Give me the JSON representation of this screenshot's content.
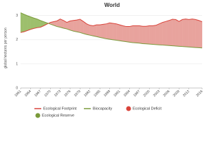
{
  "chart_data": {
    "type": "area-compare",
    "title": "World",
    "y_label": "global hectares per person",
    "x": [
      1961,
      1962,
      1963,
      1964,
      1965,
      1966,
      1967,
      1968,
      1969,
      1970,
      1971,
      1972,
      1973,
      1974,
      1975,
      1976,
      1977,
      1978,
      1979,
      1980,
      1981,
      1982,
      1983,
      1984,
      1985,
      1986,
      1987,
      1988,
      1989,
      1990,
      1991,
      1992,
      1993,
      1994,
      1995,
      1996,
      1997,
      1998,
      1999,
      2000,
      2001,
      2002,
      2003,
      2004,
      2005,
      2006,
      2007,
      2008,
      2009,
      2010,
      2011,
      2012,
      2013,
      2014,
      2015,
      2016
    ],
    "series": [
      {
        "name": "Ecological Footprint",
        "color": "#d9433a",
        "values": [
          2.3,
          2.33,
          2.38,
          2.43,
          2.47,
          2.5,
          2.52,
          2.58,
          2.65,
          2.72,
          2.75,
          2.78,
          2.86,
          2.8,
          2.72,
          2.78,
          2.8,
          2.82,
          2.85,
          2.76,
          2.66,
          2.6,
          2.58,
          2.62,
          2.62,
          2.64,
          2.66,
          2.7,
          2.68,
          2.66,
          2.62,
          2.58,
          2.55,
          2.55,
          2.58,
          2.58,
          2.58,
          2.56,
          2.56,
          2.58,
          2.58,
          2.6,
          2.66,
          2.72,
          2.76,
          2.8,
          2.85,
          2.84,
          2.76,
          2.84,
          2.86,
          2.84,
          2.86,
          2.84,
          2.8,
          2.75
        ]
      },
      {
        "name": "Biocapacity",
        "color": "#7a9a3a",
        "values": [
          3.12,
          3.06,
          3.0,
          2.95,
          2.9,
          2.86,
          2.8,
          2.75,
          2.7,
          2.65,
          2.6,
          2.55,
          2.52,
          2.48,
          2.45,
          2.4,
          2.36,
          2.33,
          2.3,
          2.26,
          2.22,
          2.19,
          2.16,
          2.13,
          2.1,
          2.07,
          2.04,
          2.02,
          2.0,
          1.98,
          1.96,
          1.94,
          1.92,
          1.9,
          1.88,
          1.87,
          1.86,
          1.84,
          1.83,
          1.82,
          1.81,
          1.8,
          1.79,
          1.78,
          1.77,
          1.76,
          1.75,
          1.74,
          1.73,
          1.72,
          1.71,
          1.7,
          1.69,
          1.68,
          1.67,
          1.66
        ]
      }
    ],
    "areas": [
      {
        "name": "Ecological Deficit",
        "color": "#e8a39d"
      },
      {
        "name": "Ecological Reserve",
        "color": "#9dbf6c"
      }
    ],
    "xlim": [
      1961,
      2016
    ],
    "xticks": [
      1961,
      1964,
      1967,
      1970,
      1973,
      1976,
      1979,
      1982,
      1985,
      1988,
      1991,
      1994,
      1997,
      2000,
      2003,
      2006,
      2009,
      2012,
      2016
    ],
    "ylim": [
      0,
      3.25
    ],
    "yticks": [
      0,
      1,
      2,
      3
    ],
    "grid": true
  }
}
